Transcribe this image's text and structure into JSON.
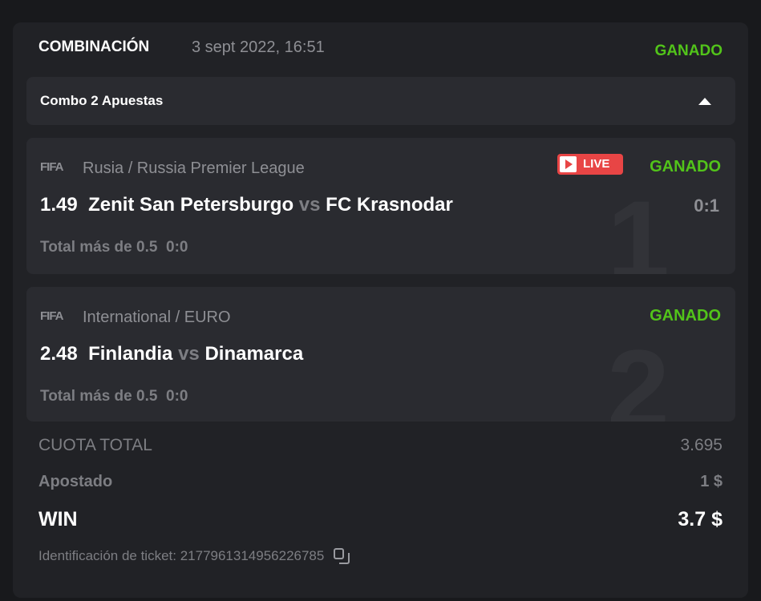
{
  "header": {
    "title": "COMBINACIÓN",
    "date": "3 sept 2022, 16:51",
    "status": "GANADO"
  },
  "combo": {
    "label": "Combo 2 Apuestas",
    "toggle_icon": "triangle-up-icon"
  },
  "bets": [
    {
      "index": "1",
      "sport": "FIFA",
      "league": "Rusia / Russia Premier League",
      "live": "LIVE",
      "status": "GANADO",
      "odds": "1.49",
      "home": "Zenit San Petersburgo",
      "vs": "vs",
      "away": "FC Krasnodar",
      "market": "Total más de 0.5",
      "market_score": "0:0",
      "score": "0:1"
    },
    {
      "index": "2",
      "sport": "FIFA",
      "league": "International / EURO",
      "status": "GANADO",
      "odds": "2.48",
      "home": "Finlandia",
      "vs": "vs",
      "away": "Dinamarca",
      "market": "Total más de 0.5",
      "market_score": "0:0"
    }
  ],
  "summary": {
    "cuota_label": "CUOTA TOTAL",
    "cuota_value": "3.695",
    "stake_label": "Apostado",
    "stake_value": "1 $",
    "win_label": "WIN",
    "win_value": "3.7 $"
  },
  "ticket": {
    "label": "Identificación de ticket: 2177961314956226785",
    "copy_icon": "copy-icon"
  },
  "colors": {
    "won": "#52c41a",
    "live": "#e84545"
  }
}
